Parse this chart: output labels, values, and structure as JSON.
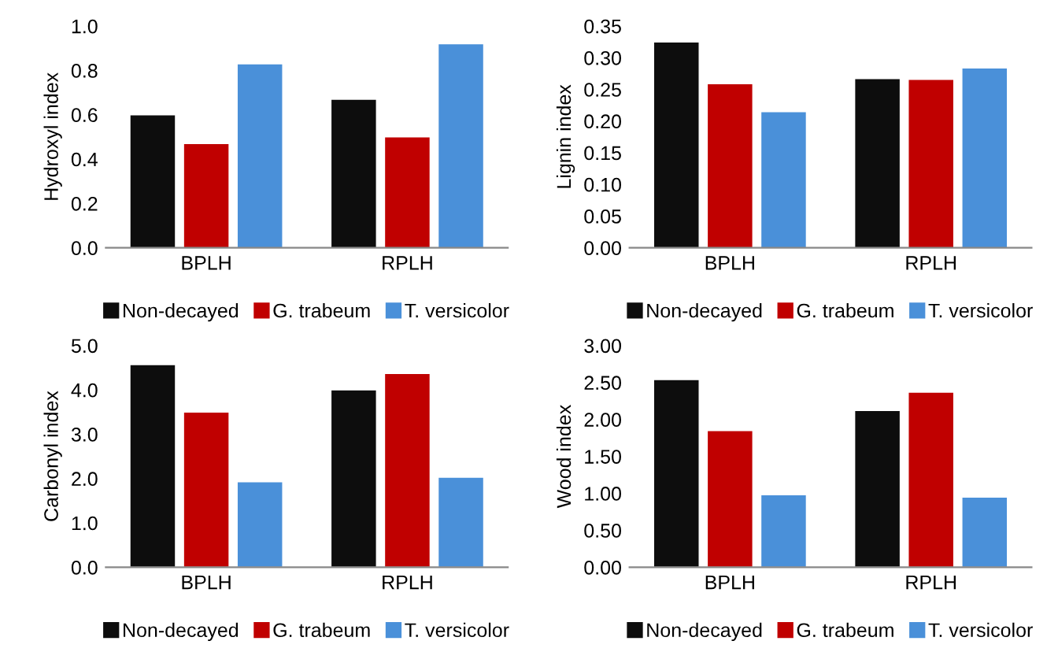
{
  "chart_data": [
    {
      "type": "bar",
      "ylabel": "Hydroxyl index",
      "categories": [
        "BPLH",
        "RPLH"
      ],
      "legend": "bottom",
      "grid": false,
      "series": [
        {
          "name": "Non-decayed",
          "color": "#0d0d0d",
          "values": [
            0.6,
            0.67
          ]
        },
        {
          "name": "G. trabeum",
          "color": "#c00000",
          "values": [
            0.47,
            0.5
          ]
        },
        {
          "name": "T. versicolor",
          "color": "#4a90d9",
          "values": [
            0.83,
            0.92
          ]
        }
      ],
      "ylim": [
        0,
        1.0
      ],
      "yticks": [
        {
          "value": 0,
          "label": "0.0"
        },
        0.2,
        0.4,
        0.6,
        0.8,
        {
          "value": 1,
          "label": "1.0"
        }
      ]
    },
    {
      "type": "bar",
      "ylabel": "Lignin index",
      "categories": [
        "BPLH",
        "RPLH"
      ],
      "legend": "bottom",
      "grid": false,
      "series": [
        {
          "name": "Non-decayed",
          "color": "#0d0d0d",
          "values": [
            0.325,
            0.267
          ]
        },
        {
          "name": "G. trabeum",
          "color": "#c00000",
          "values": [
            0.259,
            0.266
          ]
        },
        {
          "name": "T. versicolor",
          "color": "#4a90d9",
          "values": [
            0.215,
            0.284
          ]
        }
      ],
      "ylim": [
        0,
        0.35
      ],
      "yticks": [
        {
          "value": 0,
          "label": "0.00"
        },
        {
          "value": 0.05,
          "label": "0.05"
        },
        {
          "value": 0.1,
          "label": "0.10"
        },
        {
          "value": 0.15,
          "label": "0.15"
        },
        {
          "value": 0.2,
          "label": "0.20"
        },
        {
          "value": 0.25,
          "label": "0.25"
        },
        {
          "value": 0.3,
          "label": "0.30"
        },
        {
          "value": 0.35,
          "label": "0.35"
        }
      ]
    },
    {
      "type": "bar",
      "ylabel": "Carbonyl index",
      "categories": [
        "BPLH",
        "RPLH"
      ],
      "legend": "bottom",
      "grid": false,
      "series": [
        {
          "name": "Non-decayed",
          "color": "#0d0d0d",
          "values": [
            4.57,
            4.0
          ]
        },
        {
          "name": "G. trabeum",
          "color": "#c00000",
          "values": [
            3.5,
            4.37
          ]
        },
        {
          "name": "T. versicolor",
          "color": "#4a90d9",
          "values": [
            1.93,
            2.03
          ]
        }
      ],
      "ylim": [
        0,
        5.0
      ],
      "yticks": [
        {
          "value": 0,
          "label": "0.0"
        },
        {
          "value": 1,
          "label": "1.0"
        },
        {
          "value": 2,
          "label": "2.0"
        },
        {
          "value": 3,
          "label": "3.0"
        },
        {
          "value": 4,
          "label": "4.0"
        },
        {
          "value": 5,
          "label": "5.0"
        }
      ]
    },
    {
      "type": "bar",
      "ylabel": "Wood index",
      "categories": [
        "BPLH",
        "RPLH"
      ],
      "legend": "bottom",
      "grid": false,
      "series": [
        {
          "name": "Non-decayed",
          "color": "#0d0d0d",
          "values": [
            2.54,
            2.12
          ]
        },
        {
          "name": "G. trabeum",
          "color": "#c00000",
          "values": [
            1.85,
            2.37
          ]
        },
        {
          "name": "T. versicolor",
          "color": "#4a90d9",
          "values": [
            0.98,
            0.95
          ]
        }
      ],
      "ylim": [
        0,
        3.0
      ],
      "yticks": [
        {
          "value": 0,
          "label": "0.00"
        },
        {
          "value": 0.5,
          "label": "0.50"
        },
        {
          "value": 1.0,
          "label": "1.00"
        },
        {
          "value": 1.5,
          "label": "1.50"
        },
        {
          "value": 2.0,
          "label": "2.00"
        },
        {
          "value": 2.5,
          "label": "2.50"
        },
        {
          "value": 3.0,
          "label": "3.00"
        }
      ]
    }
  ]
}
